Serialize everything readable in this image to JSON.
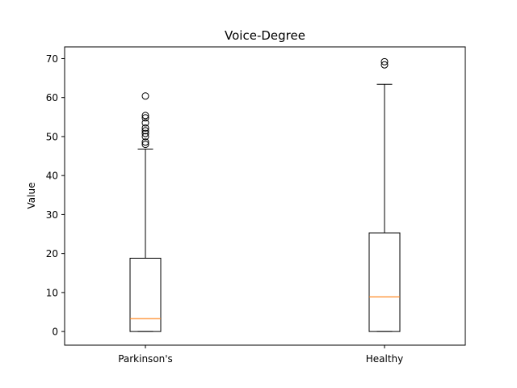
{
  "chart_data": {
    "type": "boxplot",
    "title": "Voice-Degree",
    "xlabel": "",
    "ylabel": "Value",
    "categories": [
      "Parkinson's",
      "Healthy"
    ],
    "ylim": [
      -3.5,
      73.0
    ],
    "yticks": [
      0,
      10,
      20,
      30,
      40,
      50,
      60,
      70
    ],
    "grid": false,
    "series": [
      {
        "category": "Parkinson's",
        "whisker_low": 0,
        "q1": 0,
        "median": 3.3,
        "q3": 18.8,
        "whisker_high": 46.8,
        "outliers": [
          48.0,
          48.6,
          50.0,
          50.8,
          51.5,
          52.2,
          53.5,
          54.8,
          55.4,
          60.4
        ]
      },
      {
        "category": "Healthy",
        "whisker_low": 0,
        "q1": 0,
        "median": 8.9,
        "q3": 25.3,
        "whisker_high": 63.4,
        "outliers": [
          68.4,
          69.2
        ]
      }
    ],
    "colors": {
      "box": "#000000",
      "median": "#ff7f0e"
    }
  }
}
